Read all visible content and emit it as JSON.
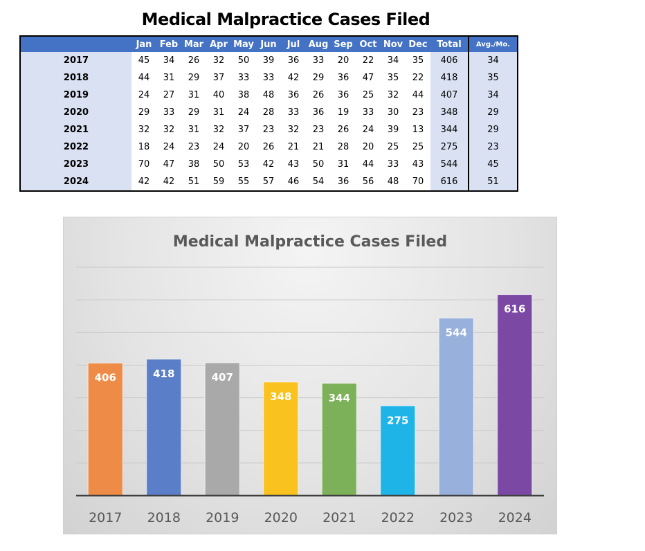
{
  "table": {
    "title": "Medical Malpractice Cases Filed",
    "columns": [
      "Jan",
      "Feb",
      "Mar",
      "Apr",
      "May",
      "Jun",
      "Jul",
      "Aug",
      "Sep",
      "Oct",
      "Nov",
      "Dec",
      "Total",
      "Avg./Mo."
    ],
    "rows": [
      {
        "year": "2017",
        "months": [
          45,
          34,
          26,
          32,
          50,
          39,
          36,
          33,
          20,
          22,
          34,
          35
        ],
        "total": 406,
        "avg": 34
      },
      {
        "year": "2018",
        "months": [
          44,
          31,
          29,
          37,
          33,
          33,
          42,
          29,
          36,
          47,
          35,
          22
        ],
        "total": 418,
        "avg": 35
      },
      {
        "year": "2019",
        "months": [
          24,
          27,
          31,
          40,
          38,
          48,
          36,
          26,
          36,
          25,
          32,
          44
        ],
        "total": 407,
        "avg": 34
      },
      {
        "year": "2020",
        "months": [
          29,
          33,
          29,
          31,
          24,
          28,
          33,
          36,
          19,
          33,
          30,
          23
        ],
        "total": 348,
        "avg": 29
      },
      {
        "year": "2021",
        "months": [
          32,
          32,
          31,
          32,
          37,
          23,
          32,
          23,
          26,
          24,
          39,
          13
        ],
        "total": 344,
        "avg": 29
      },
      {
        "year": "2022",
        "months": [
          18,
          24,
          23,
          24,
          20,
          26,
          21,
          21,
          28,
          20,
          25,
          25
        ],
        "total": 275,
        "avg": 23
      },
      {
        "year": "2023",
        "months": [
          70,
          47,
          38,
          50,
          53,
          42,
          43,
          50,
          31,
          44,
          33,
          43
        ],
        "total": 544,
        "avg": 45
      },
      {
        "year": "2024",
        "months": [
          42,
          42,
          51,
          59,
          55,
          57,
          46,
          54,
          36,
          56,
          48,
          70
        ],
        "total": 616,
        "avg": 51
      }
    ]
  },
  "chart_data": {
    "type": "bar",
    "title": "Medical Malpractice Cases Filed",
    "xlabel": "",
    "ylabel": "",
    "categories": [
      "2017",
      "2018",
      "2019",
      "2020",
      "2021",
      "2022",
      "2023",
      "2024"
    ],
    "values": [
      406,
      418,
      407,
      348,
      344,
      275,
      544,
      616
    ],
    "colors": [
      "#ed8b47",
      "#5a7fc8",
      "#a9a9a9",
      "#f9c21f",
      "#7cb15a",
      "#1fb4e8",
      "#98b1dc",
      "#7b48a4"
    ],
    "data_labels": [
      "406",
      "418",
      "407",
      "348",
      "344",
      "275",
      "544",
      "616"
    ],
    "ylim": [
      0,
      700
    ],
    "gridline_step": 100,
    "grid": true,
    "y_tick_labels_visible": false,
    "legend": "none"
  }
}
